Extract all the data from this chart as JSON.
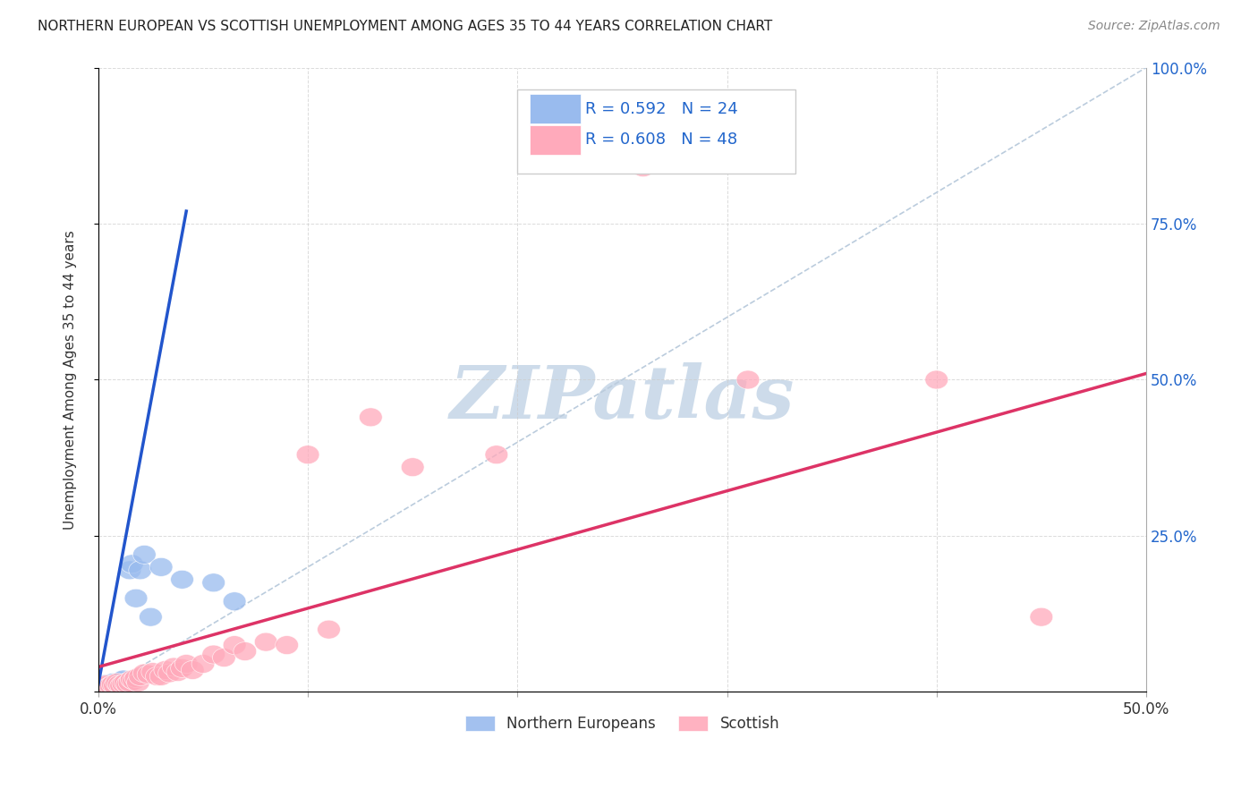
{
  "title": "NORTHERN EUROPEAN VS SCOTTISH UNEMPLOYMENT AMONG AGES 35 TO 44 YEARS CORRELATION CHART",
  "source": "Source: ZipAtlas.com",
  "ylabel": "Unemployment Among Ages 35 to 44 years",
  "xlim": [
    0.0,
    0.5
  ],
  "ylim": [
    0.0,
    1.0
  ],
  "xticks": [
    0.0,
    0.1,
    0.2,
    0.3,
    0.4,
    0.5
  ],
  "yticks": [
    0.0,
    0.25,
    0.5,
    0.75,
    1.0
  ],
  "xtick_labels": [
    "0.0%",
    "",
    "",
    "",
    "",
    "50.0%"
  ],
  "ytick_labels": [
    "",
    "25.0%",
    "50.0%",
    "75.0%",
    "100.0%"
  ],
  "blue_R": 0.592,
  "blue_N": 24,
  "pink_R": 0.608,
  "pink_N": 48,
  "background_color": "#ffffff",
  "grid_color": "#cccccc",
  "blue_color": "#99bbee",
  "pink_color": "#ffaabb",
  "blue_line_color": "#2255cc",
  "pink_line_color": "#dd3366",
  "ref_line_color": "#bbccdd",
  "watermark_color": "#c8d8e8",
  "blue_line_x": [
    0.0,
    0.042
  ],
  "blue_line_y": [
    0.012,
    0.77
  ],
  "pink_line_x": [
    0.0,
    0.5
  ],
  "pink_line_y": [
    0.04,
    0.51
  ],
  "ref_line_x": [
    0.0,
    0.5
  ],
  "ref_line_y": [
    0.0,
    1.0
  ],
  "blue_points": [
    [
      0.001,
      0.01
    ],
    [
      0.002,
      0.012
    ],
    [
      0.003,
      0.01
    ],
    [
      0.004,
      0.013
    ],
    [
      0.005,
      0.01
    ],
    [
      0.006,
      0.012
    ],
    [
      0.007,
      0.015
    ],
    [
      0.008,
      0.012
    ],
    [
      0.009,
      0.01
    ],
    [
      0.01,
      0.015
    ],
    [
      0.011,
      0.018
    ],
    [
      0.012,
      0.02
    ],
    [
      0.013,
      0.015
    ],
    [
      0.014,
      0.015
    ],
    [
      0.015,
      0.195
    ],
    [
      0.016,
      0.205
    ],
    [
      0.018,
      0.15
    ],
    [
      0.02,
      0.195
    ],
    [
      0.022,
      0.22
    ],
    [
      0.025,
      0.12
    ],
    [
      0.03,
      0.2
    ],
    [
      0.04,
      0.18
    ],
    [
      0.055,
      0.175
    ],
    [
      0.065,
      0.145
    ]
  ],
  "pink_points": [
    [
      0.001,
      0.01
    ],
    [
      0.002,
      0.008
    ],
    [
      0.003,
      0.01
    ],
    [
      0.004,
      0.012
    ],
    [
      0.005,
      0.008
    ],
    [
      0.006,
      0.01
    ],
    [
      0.007,
      0.012
    ],
    [
      0.008,
      0.01
    ],
    [
      0.009,
      0.015
    ],
    [
      0.01,
      0.012
    ],
    [
      0.011,
      0.01
    ],
    [
      0.012,
      0.013
    ],
    [
      0.013,
      0.015
    ],
    [
      0.014,
      0.012
    ],
    [
      0.015,
      0.015
    ],
    [
      0.016,
      0.02
    ],
    [
      0.017,
      0.018
    ],
    [
      0.018,
      0.022
    ],
    [
      0.019,
      0.015
    ],
    [
      0.02,
      0.025
    ],
    [
      0.022,
      0.03
    ],
    [
      0.024,
      0.028
    ],
    [
      0.026,
      0.032
    ],
    [
      0.028,
      0.025
    ],
    [
      0.03,
      0.025
    ],
    [
      0.032,
      0.035
    ],
    [
      0.034,
      0.03
    ],
    [
      0.036,
      0.04
    ],
    [
      0.038,
      0.032
    ],
    [
      0.04,
      0.038
    ],
    [
      0.042,
      0.045
    ],
    [
      0.045,
      0.035
    ],
    [
      0.05,
      0.045
    ],
    [
      0.055,
      0.06
    ],
    [
      0.06,
      0.055
    ],
    [
      0.065,
      0.075
    ],
    [
      0.07,
      0.065
    ],
    [
      0.08,
      0.08
    ],
    [
      0.09,
      0.075
    ],
    [
      0.1,
      0.38
    ],
    [
      0.11,
      0.1
    ],
    [
      0.13,
      0.44
    ],
    [
      0.15,
      0.36
    ],
    [
      0.19,
      0.38
    ],
    [
      0.26,
      0.84
    ],
    [
      0.31,
      0.5
    ],
    [
      0.4,
      0.5
    ],
    [
      0.45,
      0.12
    ]
  ]
}
